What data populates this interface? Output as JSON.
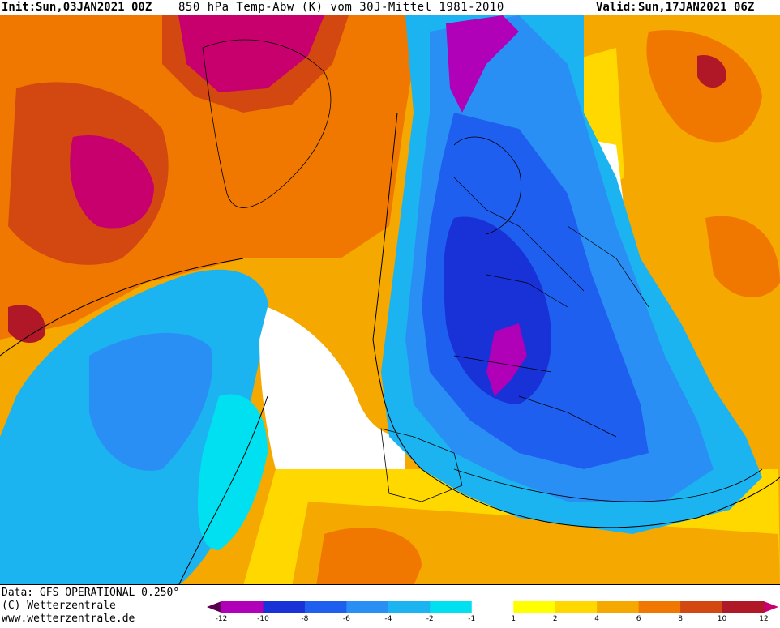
{
  "header": {
    "init_label": "Init:",
    "init_value": "Sun,03JAN2021 00Z",
    "parameter": "850 hPa Temp-Abw (K) vom 30J-Mittel 1981-2010",
    "valid_label": "Valid:",
    "valid_value": "Sun,17JAN2021 06Z"
  },
  "footer": {
    "data_source": "Data: GFS OPERATIONAL 0.250°",
    "copyright": "(C) Wetterzentrale",
    "website": "www.wetterzentrale.de"
  },
  "legend": {
    "tick_labels": [
      "-12",
      "-10",
      "-8",
      "-6",
      "-4",
      "-2",
      "-1",
      "1",
      "2",
      "4",
      "6",
      "8",
      "10",
      "12"
    ],
    "bins": [
      {
        "color": "#5a0050"
      },
      {
        "color": "#b000b8"
      },
      {
        "color": "#1832d8"
      },
      {
        "color": "#1f5ff0"
      },
      {
        "color": "#2a8ff5"
      },
      {
        "color": "#1cb4f0"
      },
      {
        "color": "#00e0f0"
      },
      {
        "color": "#ffffff"
      },
      {
        "color": "#ffff00"
      },
      {
        "color": "#ffd800"
      },
      {
        "color": "#f5a800"
      },
      {
        "color": "#f07800"
      },
      {
        "color": "#d24810"
      },
      {
        "color": "#b01828"
      },
      {
        "color": "#c8006e"
      }
    ]
  }
}
